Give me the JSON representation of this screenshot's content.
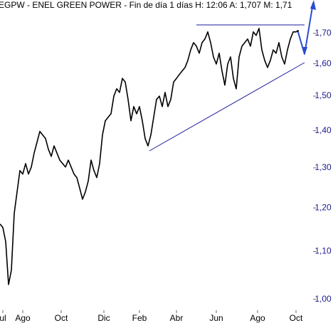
{
  "chart_data": {
    "type": "line",
    "title": "EGPW - ENEL GREEN POWER - Fin de día 1 días H: 12:06 A: 1,707 M: 1,71",
    "series": [
      {
        "name": "EGPW",
        "color": "#000000",
        "values": [
          1.162,
          1.154,
          1.122,
          1.03,
          1.06,
          1.187,
          1.239,
          1.293,
          1.284,
          1.311,
          1.284,
          1.302,
          1.339,
          1.368,
          1.398,
          1.388,
          1.378,
          1.349,
          1.33,
          1.358,
          1.339,
          1.32,
          1.311,
          1.302,
          1.32,
          1.302,
          1.284,
          1.275,
          1.248,
          1.221,
          1.239,
          1.266,
          1.32,
          1.293,
          1.275,
          1.311,
          1.388,
          1.428,
          1.438,
          1.448,
          1.5,
          1.522,
          1.511,
          1.554,
          1.543,
          1.49,
          1.428,
          1.469,
          1.448,
          1.469,
          1.428,
          1.378,
          1.358,
          1.388,
          1.438,
          1.49,
          1.5,
          1.469,
          1.511,
          1.469,
          1.49,
          1.543,
          1.554,
          1.566,
          1.577,
          1.588,
          1.611,
          1.645,
          1.669,
          1.657,
          1.634,
          1.669,
          1.681,
          1.705,
          1.669,
          1.622,
          1.599,
          1.634,
          1.577,
          1.533,
          1.599,
          1.622,
          1.554,
          1.522,
          1.622,
          1.657,
          1.669,
          1.681,
          1.657,
          1.705,
          1.693,
          1.717,
          1.645,
          1.611,
          1.588,
          1.611,
          1.645,
          1.634,
          1.669,
          1.622,
          1.599,
          1.645,
          1.681,
          1.705,
          1.705,
          1.709
        ]
      }
    ],
    "xlim": [
      0,
      110
    ],
    "xticks": [
      {
        "value": 1,
        "label": "ul"
      },
      {
        "value": 8,
        "label": "Ago"
      },
      {
        "value": 21.5,
        "label": "Oct"
      },
      {
        "value": 36.5,
        "label": "Dic"
      },
      {
        "value": 49,
        "label": "Feb"
      },
      {
        "value": 62,
        "label": "Abr"
      },
      {
        "value": 76,
        "label": "Jun"
      },
      {
        "value": 90.5,
        "label": "Ago"
      },
      {
        "value": 104,
        "label": "Oct"
      }
    ],
    "ylim": [
      0.973,
      1.817
    ],
    "log_y": true,
    "yticks": [
      {
        "value": 1.0,
        "label": "1,00"
      },
      {
        "value": 1.1,
        "label": "1,10"
      },
      {
        "value": 1.2,
        "label": "1,20"
      },
      {
        "value": 1.3,
        "label": "1,30"
      },
      {
        "value": 1.4,
        "label": "1,40"
      },
      {
        "value": 1.5,
        "label": "1,50"
      },
      {
        "value": 1.6,
        "label": "1,60"
      },
      {
        "value": 1.7,
        "label": "1,70"
      }
    ]
  }
}
